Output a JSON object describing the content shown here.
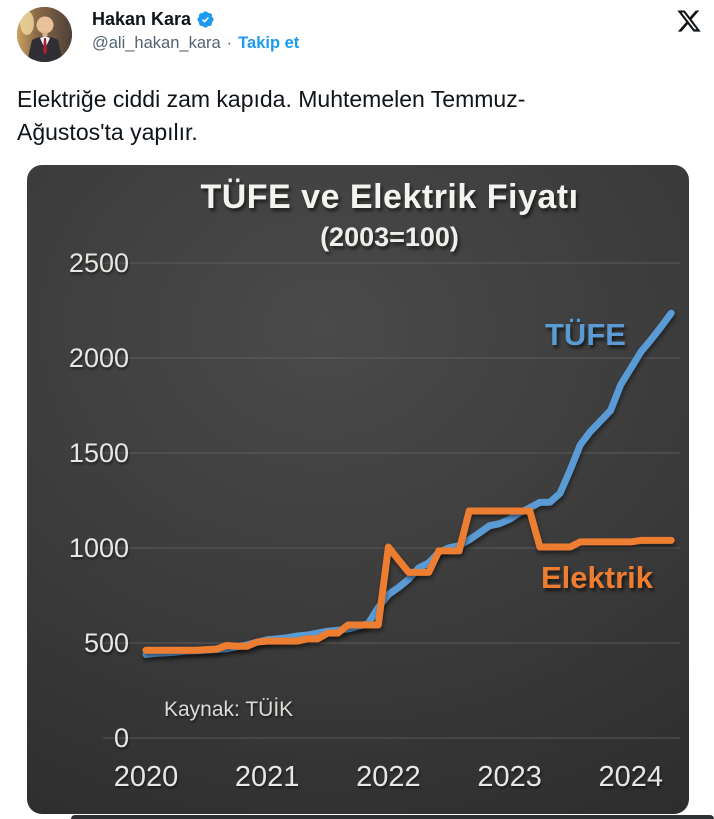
{
  "header": {
    "name": "Hakan Kara",
    "handle": "@ali_hakan_kara",
    "separator": "·",
    "follow_label": "Takip et",
    "verified_color": "#1d9bf0",
    "x_logo_color": "#0f1419"
  },
  "tweet": {
    "text": "Elektriğe ciddi zam kapıda. Muhtemelen Temmuz-\nAğustos'ta yapılır."
  },
  "chart_data": {
    "type": "line",
    "title": "TÜFE ve Elektrik Fiyatı",
    "subtitle": "(2003=100)",
    "source": "Kaynak: TÜİK",
    "background": "dark gradient",
    "grid": true,
    "legend": "inline labels near lines",
    "x_unit": "monthly, Jan 2020 - May 2024",
    "x_tick_labels": [
      "2020",
      "2021",
      "2022",
      "2023",
      "2024"
    ],
    "y_ticks": [
      0,
      500,
      1000,
      1500,
      2000,
      2500
    ],
    "ylim": [
      0,
      2630
    ],
    "series": [
      {
        "name": "TÜFE",
        "color": "#5B9BD5",
        "values": [
          440,
          446,
          448,
          452,
          458,
          459,
          462,
          466,
          470,
          480,
          490,
          504,
          517,
          522,
          528,
          537,
          542,
          552,
          562,
          567,
          574,
          588,
          601,
          687,
          755,
          792,
          836,
          895,
          922,
          978,
          1001,
          1012,
          1043,
          1079,
          1117,
          1128,
          1151,
          1186,
          1212,
          1240,
          1241,
          1288,
          1411,
          1543,
          1613,
          1668,
          1724,
          1859,
          1945,
          2032,
          2096,
          2164,
          2236
        ]
      },
      {
        "name": "Elektrik",
        "color": "#ED7D31",
        "values": [
          462,
          462,
          462,
          462,
          462,
          462,
          465,
          468,
          487,
          483,
          483,
          505,
          510,
          510,
          510,
          510,
          522,
          522,
          552,
          552,
          595,
          595,
          595,
          595,
          1005,
          938,
          872,
          872,
          872,
          985,
          985,
          985,
          1195,
          1195,
          1195,
          1195,
          1195,
          1195,
          1195,
          1005,
          1005,
          1005,
          1005,
          1032,
          1032,
          1032,
          1032,
          1032,
          1032,
          1040,
          1040,
          1040,
          1040
        ]
      }
    ]
  }
}
